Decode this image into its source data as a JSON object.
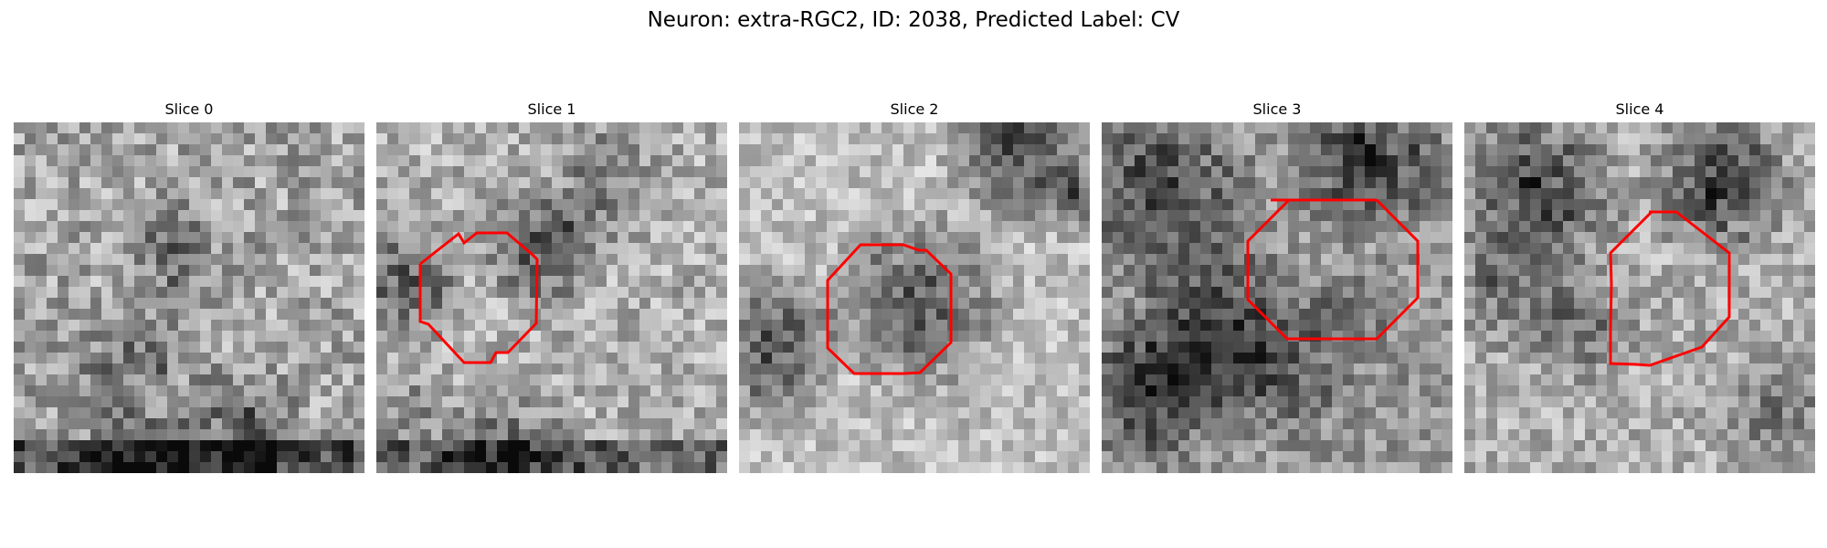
{
  "figure": {
    "title": "Neuron: extra-RGC2, ID: 2038, Predicted Label: CV",
    "contour_color": "#ff0000",
    "colormap": "grayscale"
  },
  "panels": [
    {
      "title": "Slice 0",
      "has_contour": false
    },
    {
      "title": "Slice 1",
      "has_contour": true
    },
    {
      "title": "Slice 2",
      "has_contour": true
    },
    {
      "title": "Slice 3",
      "has_contour": true
    },
    {
      "title": "Slice 4",
      "has_contour": true
    }
  ]
}
